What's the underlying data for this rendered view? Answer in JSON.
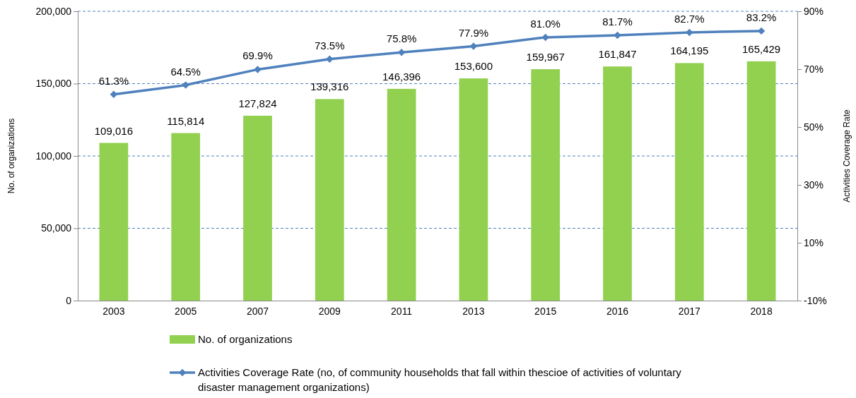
{
  "chart_data": {
    "type": "bar",
    "categories": [
      "2003",
      "2005",
      "2007",
      "2009",
      "2011",
      "2013",
      "2015",
      "2016",
      "2017",
      "2018"
    ],
    "series": [
      {
        "name": "No. of organizations",
        "color": "#92d050",
        "values": [
          109016,
          115814,
          127824,
          139316,
          146396,
          153600,
          159967,
          161847,
          164195,
          165429
        ],
        "value_labels": [
          "109,016",
          "115,814",
          "127,824",
          "139,316",
          "146,396",
          "153,600",
          "159,967",
          "161,847",
          "164,195",
          "165,429"
        ]
      },
      {
        "name": "Activities Coverage Rate (no, of community households that fall within thescioe of activities of voluntary disaster management organizations)",
        "type": "line",
        "axis": "y2",
        "color": "#4f81bd",
        "values": [
          61.3,
          64.5,
          69.9,
          73.5,
          75.8,
          77.9,
          81.0,
          81.7,
          82.7,
          83.2
        ],
        "value_labels": [
          "61.3%",
          "64.5%",
          "69.9%",
          "73.5%",
          "75.8%",
          "77.9%",
          "81.0%",
          "81.7%",
          "82.7%",
          "83.2%"
        ]
      }
    ],
    "ylabel": "No. of organizations",
    "y2label": "Activities Coverage Rate",
    "ylim": [
      0,
      200000
    ],
    "yticks": [
      0,
      {
        "value": 50000,
        "label": "50,000"
      },
      {
        "value": 100000,
        "label": "100,000"
      },
      {
        "value": 150000,
        "label": "150,000"
      },
      {
        "value": 200000,
        "label": "200,000"
      }
    ],
    "y2lim": [
      -10,
      90
    ],
    "y2ticks": [
      {
        "value": -10,
        "label": "-10%"
      },
      {
        "value": 10,
        "label": "10%"
      },
      {
        "value": 30,
        "label": "30%"
      },
      {
        "value": 50,
        "label": "50%"
      },
      {
        "value": 70,
        "label": "70%"
      },
      {
        "value": 90,
        "label": "90%"
      }
    ],
    "grid": "y",
    "legend": "bottom",
    "marker": "diamond",
    "line_style": "solid"
  }
}
